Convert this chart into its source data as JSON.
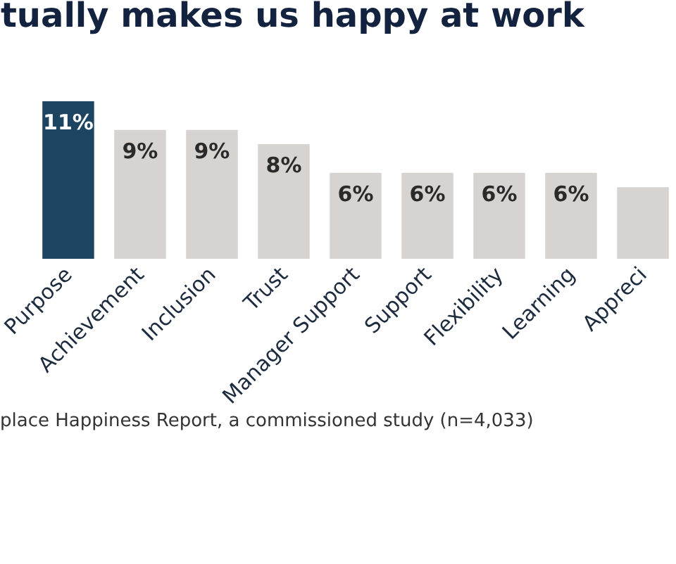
{
  "chart_data": {
    "type": "bar",
    "title": "tually makes us happy at work",
    "categories": [
      "Purpose",
      "Achievement",
      "Inclusion",
      "Trust",
      "Manager Support",
      "Support",
      "Flexibility",
      "Learning",
      "Appreci"
    ],
    "values": [
      11,
      9,
      9,
      8,
      6,
      6,
      6,
      6,
      5
    ],
    "colors": [
      "#1d4562",
      "#d6d3d1",
      "#d6d3d1",
      "#d6d3d1",
      "#d6d3d1",
      "#d6d3d1",
      "#d6d3d1",
      "#d6d3d1",
      "#d6d3d1"
    ],
    "value_labels": [
      "11%",
      "9%",
      "9%",
      "8%",
      "6%",
      "6%",
      "6%",
      "6%",
      null
    ],
    "annotations": [
      "place Happiness Report, a commissioned study (n=4,033)"
    ]
  }
}
